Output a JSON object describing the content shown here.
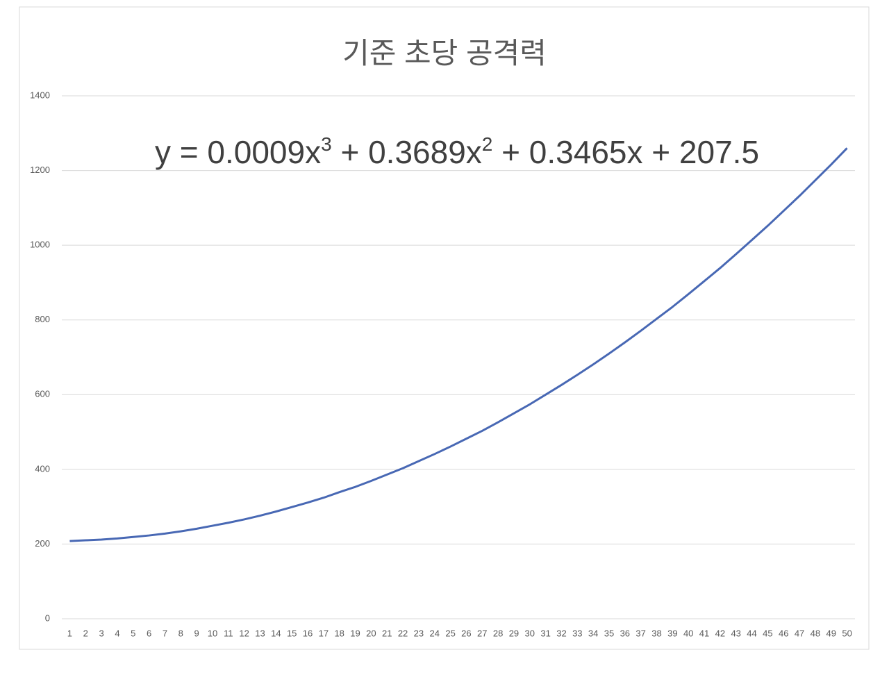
{
  "chart_data": {
    "type": "line",
    "title": "기준 초당 공격력",
    "annotation": [
      "y = 0.0009x",
      "3",
      " + 0.3689x",
      "2",
      " + 0.3465x + 207.5"
    ],
    "categories": [
      1,
      2,
      3,
      4,
      5,
      6,
      7,
      8,
      9,
      10,
      11,
      12,
      13,
      14,
      15,
      16,
      17,
      18,
      19,
      20,
      21,
      22,
      23,
      24,
      25,
      26,
      27,
      28,
      29,
      30,
      31,
      32,
      33,
      34,
      35,
      36,
      37,
      38,
      39,
      40,
      41,
      42,
      43,
      44,
      45,
      46,
      47,
      48,
      49,
      50
    ],
    "values": [
      208,
      210,
      212,
      215,
      219,
      223,
      228,
      234,
      241,
      249,
      257,
      266,
      276,
      287,
      299,
      311,
      324,
      339,
      353,
      369,
      386,
      403,
      422,
      441,
      461,
      482,
      503,
      526,
      550,
      574,
      600,
      626,
      653,
      681,
      710,
      740,
      771,
      803,
      835,
      869,
      904,
      939,
      976,
      1014,
      1052,
      1092,
      1132,
      1174,
      1216,
      1260
    ],
    "color": "#4868b4",
    "ylim": [
      0,
      1400
    ],
    "yticks": [
      0,
      200,
      400,
      600,
      800,
      1000,
      1200,
      1400
    ],
    "grid": true
  }
}
